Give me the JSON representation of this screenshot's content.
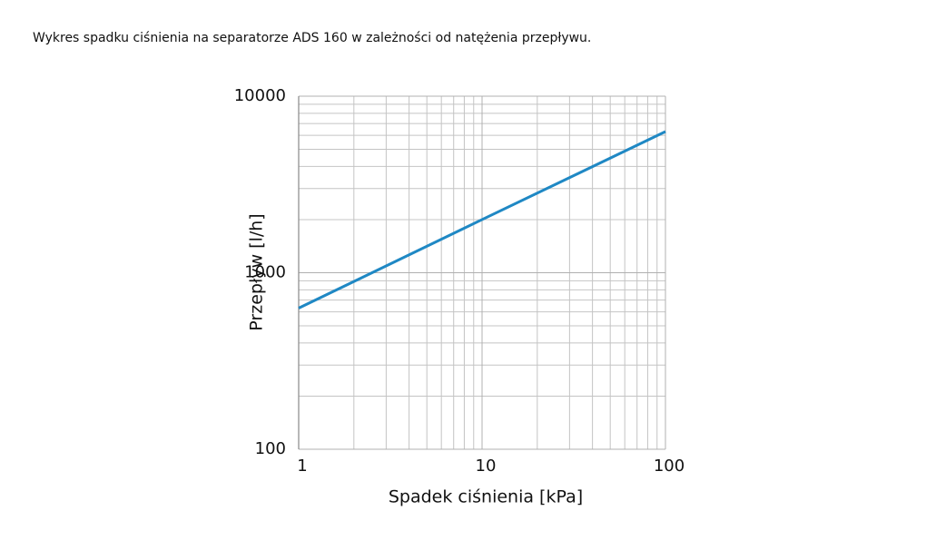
{
  "chart_data": {
    "type": "line",
    "title": "Wykres spadku ciśnienia na separatorze ADS 160 w zależności od natężenia przepływu.",
    "x_label": "Spadek ciśnienia [kPa]",
    "y_label": "Przepływ [l/h]",
    "x": [
      1,
      10,
      100
    ],
    "series": [
      {
        "color": "#1f88c4",
        "values": [
          630,
          2000,
          6300
        ]
      }
    ],
    "xlim": [
      1,
      100
    ],
    "ylim": [
      100,
      10000
    ],
    "xticks": [
      1,
      10,
      100
    ],
    "yticks": [
      100,
      1000,
      10000
    ],
    "xscale": "log",
    "yscale": "log",
    "grid": true
  }
}
